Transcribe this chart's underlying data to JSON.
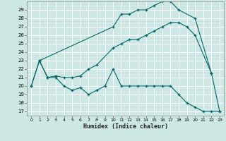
{
  "xlabel": "Humidex (Indice chaleur)",
  "background_color": "#cde8e4",
  "grid_color": "#ffffff",
  "line_color": "#006666",
  "xlim": [
    -0.5,
    23.5
  ],
  "ylim": [
    16.5,
    30.0
  ],
  "yticks": [
    17,
    18,
    19,
    20,
    21,
    22,
    23,
    24,
    25,
    26,
    27,
    28,
    29
  ],
  "xticks": [
    0,
    1,
    2,
    3,
    4,
    5,
    6,
    7,
    8,
    9,
    10,
    11,
    12,
    13,
    14,
    15,
    16,
    17,
    18,
    19,
    20,
    21,
    22,
    23
  ],
  "curve_top_x": [
    1,
    10,
    11,
    12,
    13,
    14,
    15,
    16,
    17,
    18,
    20,
    22
  ],
  "curve_top_y": [
    23,
    27,
    28.5,
    28.5,
    29,
    29,
    29.5,
    30,
    30,
    29,
    28,
    21.5
  ],
  "curve_mid_x": [
    0,
    1,
    2,
    3,
    4,
    5,
    6,
    7,
    8,
    10,
    11,
    12,
    13,
    14,
    15,
    16,
    17,
    18,
    19,
    20,
    22,
    23
  ],
  "curve_mid_y": [
    20,
    23,
    21,
    21.2,
    21,
    21,
    21.2,
    22,
    22.5,
    24.5,
    25,
    25.5,
    25.5,
    26,
    26.5,
    27,
    27.5,
    27.5,
    27,
    26,
    21.5,
    17
  ],
  "curve_bot_x": [
    0,
    1,
    2,
    3,
    4,
    5,
    6,
    7,
    8,
    9,
    10,
    11,
    12,
    13,
    14,
    15,
    16,
    17,
    18,
    19,
    20,
    21,
    22,
    23
  ],
  "curve_bot_y": [
    20,
    23,
    21,
    21,
    20,
    19.5,
    19.8,
    19,
    19.5,
    20,
    22,
    20,
    20,
    20,
    20,
    20,
    20,
    20,
    19,
    18,
    17.5,
    17,
    17,
    17
  ]
}
